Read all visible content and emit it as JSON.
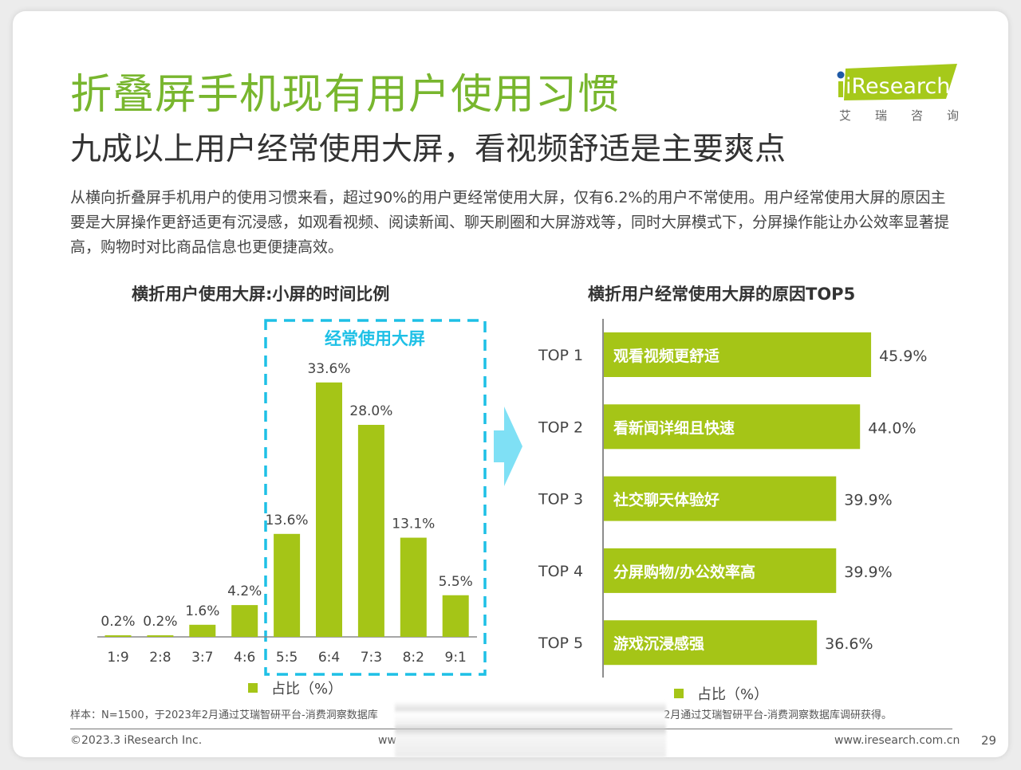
{
  "header": {
    "title": "折叠屏手机现有用户使用习惯",
    "subtitle": "九成以上用户经常使用大屏，看视频舒适是主要爽点",
    "body": "从横向折叠屏手机用户的使用习惯来看，超过90%的用户更经常使用大屏，仅有6.2%的用户不常使用。用户经常使用大屏的原因主要是大屏操作更舒适更有沉浸感，如观看视频、阅读新闻、聊天刷圈和大屏游戏等，同时大屏模式下，分屏操作能让办公效率显著提高，购物时对比商品信息也更便捷高效。"
  },
  "logo": {
    "brand": "iResearch",
    "cn_chars": [
      "艾",
      "瑞",
      "咨",
      "询"
    ],
    "colors": {
      "green": "#a6c91a",
      "dot": "#1f5aa6"
    }
  },
  "colors": {
    "title_green": "#78b62e",
    "bar_green": "#a5c517",
    "highlight_blue": "#1ec0e6",
    "arrow_blue": "#7fe0f5"
  },
  "chart_data": [
    {
      "type": "bar",
      "title": "横折用户使用大屏:小屏的时间比例",
      "categories": [
        "1:9",
        "2:8",
        "3:7",
        "4:6",
        "5:5",
        "6:4",
        "7:3",
        "8:2",
        "9:1"
      ],
      "values": [
        0.2,
        0.2,
        1.6,
        4.2,
        13.6,
        33.6,
        28.0,
        13.1,
        5.5
      ],
      "data_labels": [
        "0.2%",
        "0.2%",
        "1.6%",
        "4.2%",
        "13.6%",
        "33.6%",
        "28.0%",
        "13.1%",
        "5.5%"
      ],
      "series_name": "占比（%）",
      "highlight": {
        "label": "经常使用大屏",
        "categories": [
          "5:5",
          "6:4",
          "7:3",
          "8:2",
          "9:1"
        ]
      },
      "xlabel": "",
      "ylabel": "",
      "ylim": [
        0,
        35
      ],
      "legend": "bottom"
    },
    {
      "type": "bar",
      "orientation": "horizontal",
      "title": "横折用户经常使用大屏的原因TOP5",
      "categories": [
        "TOP 1",
        "TOP 2",
        "TOP 3",
        "TOP 4",
        "TOP 5"
      ],
      "bar_labels": [
        "观看视频更舒适",
        "看新闻详细且快速",
        "社交聊天体验好",
        "分屏购物/办公效率高",
        "游戏沉浸感强"
      ],
      "values": [
        45.9,
        44.0,
        39.9,
        39.9,
        36.6
      ],
      "data_labels": [
        "45.9%",
        "44.0%",
        "39.9%",
        "39.9%",
        "36.6%"
      ],
      "series_name": "占比（%）",
      "xlim": [
        0,
        50
      ],
      "legend": "bottom"
    }
  ],
  "footer": {
    "note_left": "样本：N=1500，于2023年2月通过艾瑞智研平台-消费洞察数据库",
    "note_right": "2月通过艾瑞智研平台-消费洞察数据库调研获得。",
    "copyright": "©2023.3 iResearch Inc.",
    "url_partial": "ww",
    "url": "www.iresearch.com.cn",
    "page": "29"
  }
}
